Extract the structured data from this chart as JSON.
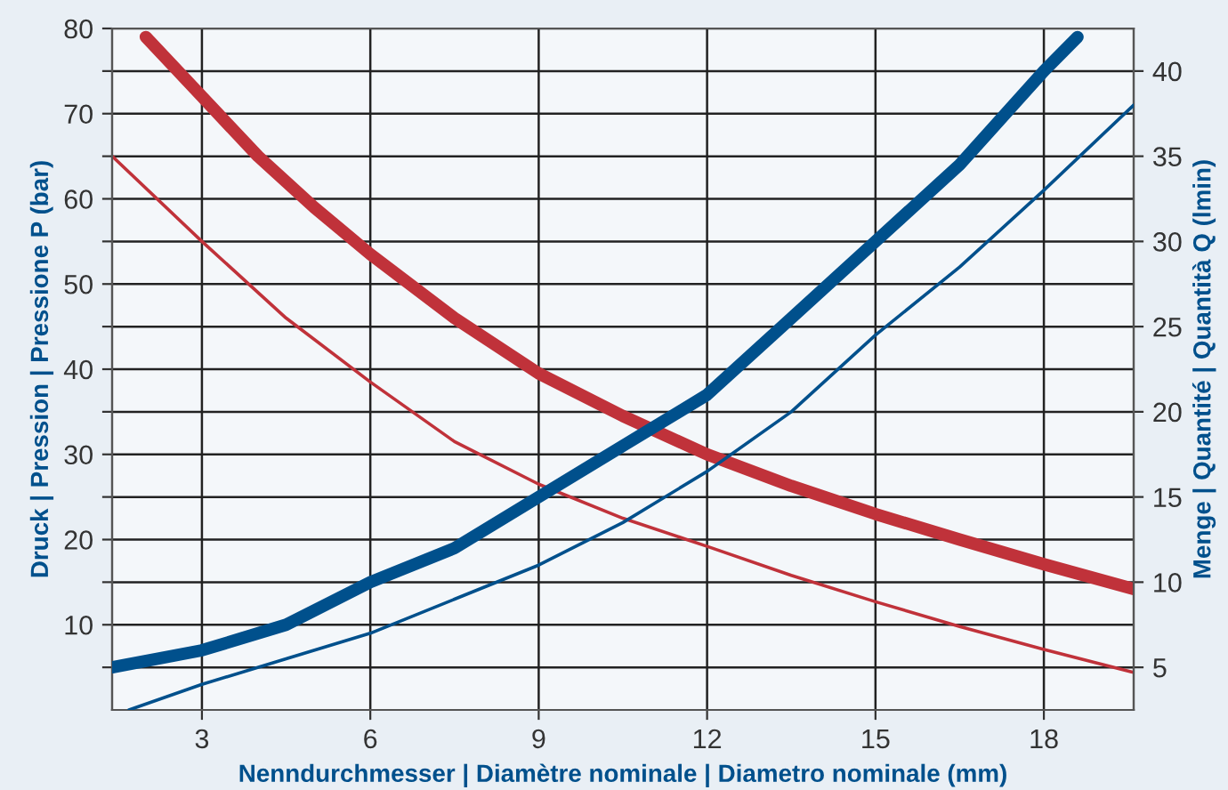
{
  "chart_data": {
    "type": "line",
    "xlabel": "Nenndurchmesser | Diamètre nominale | Diametro nominale (mm)",
    "ylabel": "Druck | Pression | Pressione P (bar)",
    "y2label": "Menge | Quantité | Quantità Q (lmin)",
    "xlim": [
      1.4,
      19.6
    ],
    "xticks": [
      3,
      6,
      9,
      12,
      15,
      18
    ],
    "ylim": [
      0,
      80
    ],
    "yticks": [
      {
        "value": 5,
        "label": null
      },
      10,
      {
        "value": 15,
        "label": null
      },
      20,
      {
        "value": 25,
        "label": null
      },
      30,
      {
        "value": 35,
        "label": null
      },
      40,
      {
        "value": 45,
        "label": null
      },
      50,
      {
        "value": 55,
        "label": null
      },
      60,
      {
        "value": 65,
        "label": null
      },
      70,
      {
        "value": 75,
        "label": null
      },
      80
    ],
    "y2lim": [
      2.5,
      42.5
    ],
    "y2ticks": [
      5,
      10,
      15,
      20,
      25,
      30,
      35,
      40
    ],
    "grid": true,
    "marker": "none",
    "line_style": "solid",
    "series": [
      {
        "color": "#c0323a",
        "x": [
          2,
          3,
          4,
          5,
          6,
          7.5,
          9,
          10.5,
          12,
          13.5,
          15,
          16.5,
          18,
          19.6
        ],
        "values": [
          79,
          72,
          65,
          59,
          53.5,
          46,
          39.5,
          34.5,
          30,
          26.3,
          23,
          20,
          17.1,
          14.2
        ]
      },
      {
        "color": "#c0323a",
        "x": [
          1.4,
          3,
          4.5,
          6,
          7.5,
          9,
          10.5,
          12,
          13.5,
          15,
          16.5,
          18,
          19.6
        ],
        "values": [
          65,
          55,
          46,
          38.5,
          31.5,
          26.5,
          22.5,
          19.2,
          15.8,
          12.7,
          9.8,
          7.1,
          4.4
        ]
      },
      {
        "color": "#00508c",
        "axis": "y2",
        "x": [
          1.4,
          3,
          4.5,
          6,
          7.5,
          9,
          10.5,
          12,
          13.5,
          15,
          16.5,
          18,
          18.6
        ],
        "values": [
          5,
          6,
          7.5,
          10,
          12,
          15,
          18,
          21,
          25.5,
          30,
          34.5,
          40,
          42
        ]
      },
      {
        "color": "#00508c",
        "axis": "y2",
        "x": [
          1.7,
          3,
          4.5,
          6,
          7.5,
          9,
          10.5,
          12,
          13.5,
          15,
          16.5,
          18,
          19.6
        ],
        "values": [
          2.5,
          4,
          5.5,
          7,
          9,
          11,
          13.5,
          16.5,
          20,
          24.5,
          28.5,
          33,
          38
        ]
      }
    ]
  }
}
